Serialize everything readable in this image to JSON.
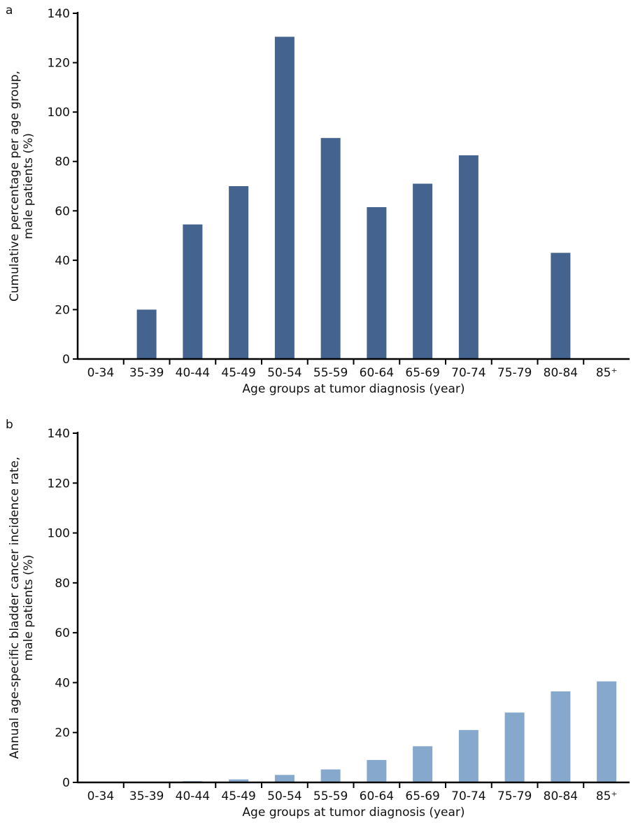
{
  "chart_data": [
    {
      "type": "bar",
      "panel_label": "a",
      "categories": [
        "0-34",
        "35-39",
        "40-44",
        "45-49",
        "50-54",
        "55-59",
        "60-64",
        "65-69",
        "70-74",
        "75-79",
        "80-84",
        "85⁺"
      ],
      "values": [
        0,
        20,
        54.5,
        70,
        130.5,
        89.5,
        61.5,
        71,
        82.5,
        0,
        43,
        0
      ],
      "ylabel_lines": [
        "Cumulative percentage per age group,",
        "male patients (%)"
      ],
      "xlabel": "Age groups at tumor diagnosis (year)",
      "ylim": [
        0,
        140
      ],
      "yticks": [
        0,
        20,
        40,
        60,
        80,
        100,
        120,
        140
      ],
      "bar_color": "#44648f",
      "grid": false
    },
    {
      "type": "bar",
      "panel_label": "b",
      "categories": [
        "0-34",
        "35-39",
        "40-44",
        "45-49",
        "50-54",
        "55-59",
        "60-64",
        "65-69",
        "70-74",
        "75-79",
        "80-84",
        "85⁺"
      ],
      "values": [
        0,
        0,
        0.5,
        1.2,
        3,
        5.2,
        9,
        14.5,
        21,
        28,
        36.5,
        40.5
      ],
      "ylabel_lines": [
        "Annual age-specific bladder cancer incidence rate,",
        "male patients (%)"
      ],
      "xlabel": "Age groups at tumor diagnosis (year)",
      "ylim": [
        0,
        140
      ],
      "yticks": [
        0,
        20,
        40,
        60,
        80,
        100,
        120,
        140
      ],
      "bar_color": "#86a8cc",
      "grid": false
    }
  ]
}
